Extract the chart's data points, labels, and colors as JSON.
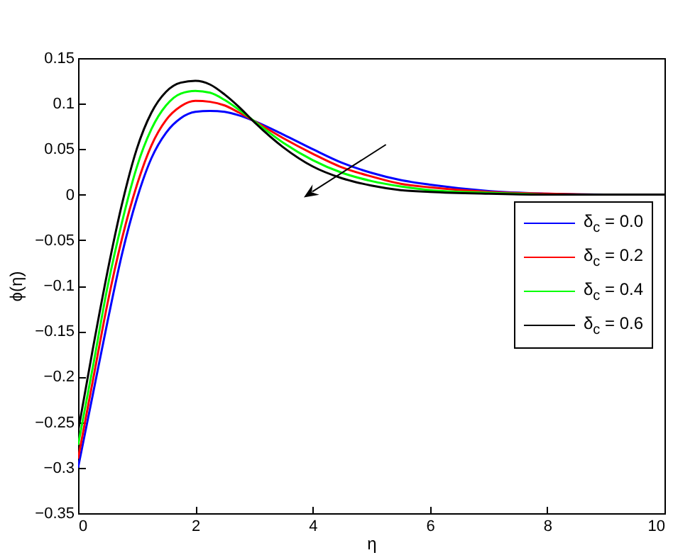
{
  "chart_data": {
    "type": "line",
    "xlabel": "η",
    "ylabel": "ϕ(η)",
    "x": [
      0,
      0.25,
      0.5,
      0.75,
      1,
      1.25,
      1.5,
      1.75,
      2,
      2.25,
      2.5,
      2.75,
      3,
      3.5,
      4,
      4.5,
      5,
      5.5,
      6,
      7,
      8,
      9,
      10
    ],
    "series": [
      {
        "name": "δ$_{c}$ = 0.0",
        "color": "#0000ff",
        "values": [
          -0.3,
          -0.22,
          -0.14,
          -0.065,
          -0.005,
          0.04,
          0.068,
          0.084,
          0.091,
          0.092,
          0.091,
          0.087,
          0.081,
          0.066,
          0.05,
          0.035,
          0.024,
          0.016,
          0.011,
          0.004,
          0.001,
          0,
          0
        ]
      },
      {
        "name": "δ$_{c}$ = 0.2",
        "color": "#ff0000",
        "values": [
          -0.29,
          -0.205,
          -0.12,
          -0.048,
          0.01,
          0.054,
          0.082,
          0.097,
          0.103,
          0.102,
          0.098,
          0.09,
          0.081,
          0.062,
          0.045,
          0.03,
          0.02,
          0.012,
          0.008,
          0.003,
          0.001,
          0,
          0
        ]
      },
      {
        "name": "δ$_{c}$ = 0.4",
        "color": "#00ff00",
        "values": [
          -0.275,
          -0.19,
          -0.102,
          -0.03,
          0.03,
          0.072,
          0.098,
          0.111,
          0.114,
          0.112,
          0.104,
          0.093,
          0.081,
          0.057,
          0.038,
          0.024,
          0.015,
          0.009,
          0.005,
          0.002,
          0,
          null,
          null
        ]
      },
      {
        "name": "δ$_{c}$ = 0.6",
        "color": "#000000",
        "values": [
          -0.26,
          -0.17,
          -0.085,
          -0.01,
          0.05,
          0.09,
          0.113,
          0.123,
          0.125,
          0.121,
          0.11,
          0.096,
          0.08,
          0.052,
          0.031,
          0.018,
          0.01,
          0.005,
          0.003,
          0.001,
          0,
          0,
          0
        ]
      }
    ],
    "xlim": [
      0,
      10
    ],
    "xticks": [
      0,
      2,
      4,
      6,
      8,
      10
    ],
    "ylim": [
      -0.35,
      0.15
    ],
    "yticks": [
      -0.35,
      -0.3,
      -0.25,
      -0.2,
      -0.15,
      -0.1,
      -0.05,
      0,
      0.05,
      0.1,
      0.15
    ],
    "legend": "right",
    "grid": false,
    "marker": "none",
    "line_style": "solid"
  }
}
